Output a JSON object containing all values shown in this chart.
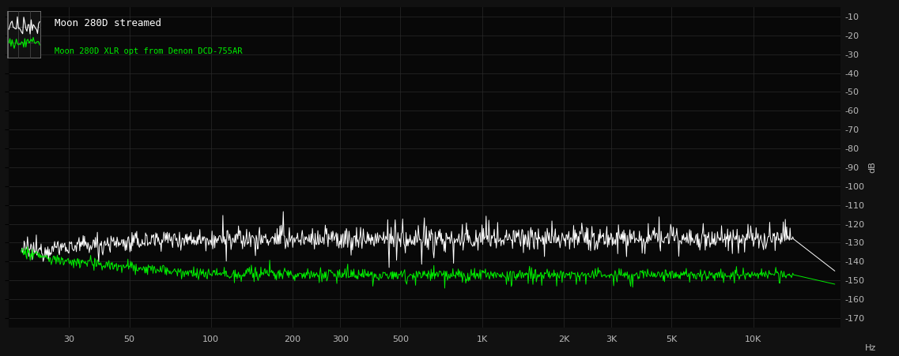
{
  "title1": "Moon 280D streamed",
  "title2": "Moon 280D XLR opt from Denon DCD-755AR",
  "bg_color": "#111111",
  "plot_bg_color": "#080808",
  "grid_color": "#2a2a2a",
  "text_color": "#ffffff",
  "green_color": "#00ee00",
  "white_color": "#ffffff",
  "ylabel": "dB",
  "xlabel": "Hz",
  "y_ticks": [
    -10,
    -20,
    -30,
    -40,
    -50,
    -60,
    -70,
    -80,
    -90,
    -100,
    -110,
    -120,
    -130,
    -140,
    -150,
    -160,
    -170
  ],
  "x_tick_pos": [
    30,
    50,
    100,
    200,
    300,
    500,
    1000,
    2000,
    3000,
    5000,
    10000
  ],
  "x_tick_labels": [
    "30",
    "50",
    "100",
    "200",
    "300",
    "500",
    "1K",
    "2K",
    "3K",
    "5K",
    "10K"
  ],
  "xlim": [
    18,
    21000
  ],
  "ylim": [
    -175,
    -5
  ],
  "white_base": -128,
  "green_base": -147
}
